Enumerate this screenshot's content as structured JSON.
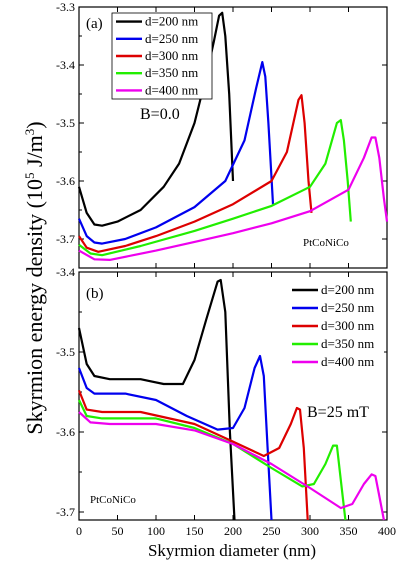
{
  "figure": {
    "ylabel": "Skyrmion energy density (10^5 J/m^3)",
    "ylabel_main": "Skyrmion energy density (10",
    "ylabel_exp": "5",
    "ylabel_unit": " J/m",
    "ylabel_unit_exp": "3",
    "ylabel_close": ")",
    "xlabel": "Skyrmion diameter (nm)"
  },
  "chart_data": [
    {
      "type": "line",
      "panel": "(a)",
      "field_label": "B=0.0",
      "material_label": "PtCoNiCo",
      "xlim": [
        0,
        400
      ],
      "ylim": [
        -3.75,
        -3.3
      ],
      "yticks": [
        -3.3,
        -3.4,
        -3.5,
        -3.6,
        -3.7
      ],
      "ytick_labels": [
        "-3.3",
        "-3.4",
        "-3.5",
        "-3.6",
        "-3.7"
      ],
      "legend_position": "top-left",
      "series": [
        {
          "name": "d=200 nm",
          "color": "#000000",
          "points": [
            [
              0,
              -3.61
            ],
            [
              10,
              -3.655
            ],
            [
              20,
              -3.675
            ],
            [
              30,
              -3.677
            ],
            [
              50,
              -3.67
            ],
            [
              80,
              -3.65
            ],
            [
              110,
              -3.61
            ],
            [
              130,
              -3.57
            ],
            [
              150,
              -3.5
            ],
            [
              165,
              -3.42
            ],
            [
              175,
              -3.36
            ],
            [
              182,
              -3.315
            ],
            [
              186,
              -3.31
            ],
            [
              190,
              -3.35
            ],
            [
              195,
              -3.45
            ],
            [
              200,
              -3.6
            ]
          ]
        },
        {
          "name": "d=250 nm",
          "color": "#0000ee",
          "points": [
            [
              0,
              -3.665
            ],
            [
              10,
              -3.695
            ],
            [
              20,
              -3.706
            ],
            [
              30,
              -3.708
            ],
            [
              60,
              -3.7
            ],
            [
              100,
              -3.68
            ],
            [
              150,
              -3.645
            ],
            [
              190,
              -3.6
            ],
            [
              215,
              -3.53
            ],
            [
              230,
              -3.44
            ],
            [
              238,
              -3.395
            ],
            [
              242,
              -3.42
            ],
            [
              246,
              -3.5
            ],
            [
              252,
              -3.64
            ]
          ]
        },
        {
          "name": "d=300 nm",
          "color": "#dd0000",
          "points": [
            [
              0,
              -3.695
            ],
            [
              10,
              -3.715
            ],
            [
              25,
              -3.722
            ],
            [
              60,
              -3.712
            ],
            [
              100,
              -3.695
            ],
            [
              150,
              -3.67
            ],
            [
              200,
              -3.64
            ],
            [
              250,
              -3.6
            ],
            [
              270,
              -3.55
            ],
            [
              285,
              -3.46
            ],
            [
              289,
              -3.452
            ],
            [
              293,
              -3.5
            ],
            [
              298,
              -3.6
            ],
            [
              302,
              -3.655
            ]
          ]
        },
        {
          "name": "d=350 nm",
          "color": "#22ee00",
          "points": [
            [
              0,
              -3.71
            ],
            [
              15,
              -3.725
            ],
            [
              30,
              -3.728
            ],
            [
              80,
              -3.712
            ],
            [
              150,
              -3.686
            ],
            [
              200,
              -3.665
            ],
            [
              250,
              -3.643
            ],
            [
              300,
              -3.61
            ],
            [
              320,
              -3.57
            ],
            [
              335,
              -3.5
            ],
            [
              340,
              -3.495
            ],
            [
              344,
              -3.53
            ],
            [
              349,
              -3.6
            ],
            [
              353,
              -3.67
            ]
          ]
        },
        {
          "name": "d=400 nm",
          "color": "#ee00ee",
          "points": [
            [
              0,
              -3.72
            ],
            [
              20,
              -3.735
            ],
            [
              40,
              -3.736
            ],
            [
              100,
              -3.72
            ],
            [
              150,
              -3.705
            ],
            [
              200,
              -3.69
            ],
            [
              250,
              -3.673
            ],
            [
              300,
              -3.652
            ],
            [
              350,
              -3.615
            ],
            [
              370,
              -3.56
            ],
            [
              380,
              -3.525
            ],
            [
              385,
              -3.525
            ],
            [
              390,
              -3.56
            ],
            [
              396,
              -3.63
            ],
            [
              400,
              -3.67
            ]
          ]
        }
      ]
    },
    {
      "type": "line",
      "panel": "(b)",
      "field_label": "B=25 mT",
      "material_label": "PtCoNiCo",
      "xlim": [
        0,
        400
      ],
      "xticks": [
        0,
        50,
        100,
        150,
        200,
        250,
        300,
        350,
        400
      ],
      "xtick_labels": [
        "0",
        "50",
        "100",
        "150",
        "200",
        "250",
        "300",
        "350",
        "400"
      ],
      "ylim": [
        -3.71,
        -3.4
      ],
      "yticks": [
        -3.4,
        -3.5,
        -3.6,
        -3.7
      ],
      "ytick_labels": [
        "-3.4",
        "-3.5",
        "-3.6",
        "-3.7"
      ],
      "legend_position": "top-right",
      "series": [
        {
          "name": "d=200 nm",
          "color": "#000000",
          "points": [
            [
              0,
              -3.47
            ],
            [
              10,
              -3.515
            ],
            [
              20,
              -3.53
            ],
            [
              40,
              -3.534
            ],
            [
              80,
              -3.534
            ],
            [
              110,
              -3.54
            ],
            [
              135,
              -3.54
            ],
            [
              150,
              -3.51
            ],
            [
              165,
              -3.46
            ],
            [
              180,
              -3.412
            ],
            [
              184,
              -3.41
            ],
            [
              190,
              -3.45
            ],
            [
              196,
              -3.6
            ],
            [
              202,
              -3.71
            ]
          ]
        },
        {
          "name": "d=250 nm",
          "color": "#0000ee",
          "points": [
            [
              0,
              -3.52
            ],
            [
              10,
              -3.545
            ],
            [
              20,
              -3.552
            ],
            [
              60,
              -3.552
            ],
            [
              100,
              -3.56
            ],
            [
              140,
              -3.58
            ],
            [
              180,
              -3.597
            ],
            [
              200,
              -3.595
            ],
            [
              215,
              -3.57
            ],
            [
              228,
              -3.52
            ],
            [
              235,
              -3.505
            ],
            [
              240,
              -3.53
            ],
            [
              245,
              -3.62
            ],
            [
              250,
              -3.71
            ]
          ]
        },
        {
          "name": "d=300 nm",
          "color": "#dd0000",
          "points": [
            [
              0,
              -3.548
            ],
            [
              10,
              -3.572
            ],
            [
              30,
              -3.575
            ],
            [
              80,
              -3.575
            ],
            [
              150,
              -3.59
            ],
            [
              200,
              -3.612
            ],
            [
              240,
              -3.63
            ],
            [
              260,
              -3.62
            ],
            [
              275,
              -3.59
            ],
            [
              283,
              -3.57
            ],
            [
              287,
              -3.572
            ],
            [
              292,
              -3.62
            ],
            [
              297,
              -3.71
            ]
          ]
        },
        {
          "name": "d=350 nm",
          "color": "#22ee00",
          "points": [
            [
              0,
              -3.56
            ],
            [
              10,
              -3.58
            ],
            [
              30,
              -3.583
            ],
            [
              100,
              -3.583
            ],
            [
              150,
              -3.595
            ],
            [
              200,
              -3.615
            ],
            [
              250,
              -3.645
            ],
            [
              290,
              -3.668
            ],
            [
              305,
              -3.665
            ],
            [
              320,
              -3.64
            ],
            [
              330,
              -3.617
            ],
            [
              335,
              -3.617
            ],
            [
              340,
              -3.66
            ],
            [
              346,
              -3.71
            ]
          ]
        },
        {
          "name": "d=400 nm",
          "color": "#ee00ee",
          "points": [
            [
              0,
              -3.575
            ],
            [
              15,
              -3.588
            ],
            [
              40,
              -3.59
            ],
            [
              100,
              -3.59
            ],
            [
              150,
              -3.598
            ],
            [
              200,
              -3.615
            ],
            [
              250,
              -3.64
            ],
            [
              300,
              -3.67
            ],
            [
              340,
              -3.695
            ],
            [
              355,
              -3.69
            ],
            [
              370,
              -3.665
            ],
            [
              380,
              -3.653
            ],
            [
              385,
              -3.655
            ],
            [
              390,
              -3.68
            ],
            [
              396,
              -3.71
            ]
          ]
        }
      ]
    }
  ]
}
